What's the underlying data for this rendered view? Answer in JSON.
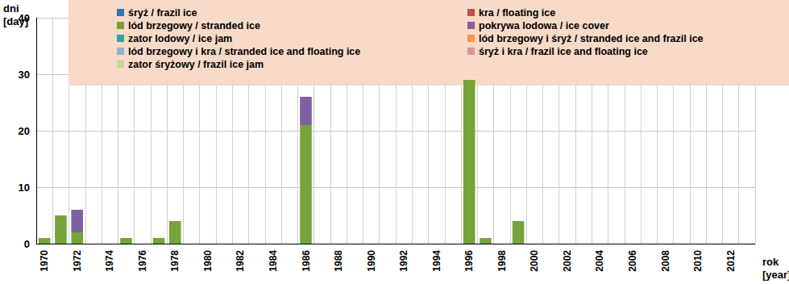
{
  "chart_data": {
    "type": "bar",
    "stacked": true,
    "grid": true,
    "legend": "top",
    "ylabel": "dni\n[day]",
    "xlabel": "rok\n[year]",
    "ylim": [
      0,
      40
    ],
    "yticks": [
      0,
      10,
      20,
      30,
      40
    ],
    "categories": [
      "1970",
      null,
      "1972",
      null,
      "1974",
      null,
      "1976",
      null,
      "1978",
      null,
      "1980",
      null,
      "1982",
      null,
      "1984",
      null,
      "1986",
      null,
      "1988",
      null,
      "1990",
      null,
      "1992",
      null,
      "1994",
      null,
      "1996",
      null,
      "1998",
      null,
      "2000",
      null,
      "2002",
      null,
      "2004",
      null,
      "2006",
      null,
      "2008",
      null,
      "2010",
      null,
      "2012",
      null
    ],
    "series": [
      {
        "name": "śryż / frazil ice",
        "color": "#2e75b6",
        "values": [
          0,
          0,
          0,
          0,
          0,
          0,
          0,
          0,
          0,
          0,
          0,
          0,
          0,
          0,
          0,
          0,
          0,
          0,
          0,
          0,
          0,
          0,
          0,
          0,
          0,
          0,
          0,
          0,
          0,
          0,
          0,
          0,
          0,
          0,
          0,
          0,
          0,
          0,
          0,
          0,
          0,
          0,
          0,
          0
        ]
      },
      {
        "name": "kra / floating ice",
        "color": "#c0504d",
        "values": [
          0,
          0,
          0,
          0,
          0,
          0,
          0,
          0,
          0,
          0,
          0,
          0,
          0,
          0,
          0,
          0,
          0,
          0,
          0,
          0,
          0,
          0,
          0,
          0,
          0,
          0,
          0,
          0,
          0,
          0,
          0,
          0,
          0,
          0,
          0,
          0,
          0,
          0,
          0,
          0,
          0,
          0,
          0,
          0
        ]
      },
      {
        "name": "lód brzegowy / stranded ice",
        "color": "#77a33a",
        "values": [
          1,
          5,
          2,
          0,
          0,
          1,
          0,
          1,
          4,
          0,
          0,
          0,
          0,
          0,
          0,
          0,
          21,
          0,
          0,
          0,
          0,
          0,
          0,
          0,
          0,
          0,
          29,
          1,
          0,
          4,
          0,
          0,
          0,
          0,
          0,
          0,
          0,
          0,
          0,
          0,
          0,
          0,
          0,
          0
        ]
      },
      {
        "name": "pokrywa lodowa / ice cover",
        "color": "#7f60a0",
        "values": [
          0,
          0,
          4,
          0,
          0,
          0,
          0,
          0,
          0,
          0,
          0,
          0,
          0,
          0,
          0,
          0,
          5,
          0,
          0,
          0,
          0,
          0,
          0,
          0,
          0,
          0,
          0,
          0,
          0,
          0,
          0,
          0,
          0,
          0,
          0,
          0,
          0,
          0,
          0,
          0,
          0,
          0,
          0,
          0
        ]
      },
      {
        "name": "zator lodowy / ice jam",
        "color": "#31a5a0",
        "values": [
          0,
          0,
          0,
          0,
          0,
          0,
          0,
          0,
          0,
          0,
          0,
          0,
          0,
          0,
          0,
          0,
          0,
          0,
          0,
          0,
          0,
          0,
          0,
          0,
          0,
          0,
          0,
          0,
          0,
          0,
          0,
          0,
          0,
          0,
          0,
          0,
          0,
          0,
          0,
          0,
          0,
          0,
          0,
          0
        ]
      },
      {
        "name": "lód brzegowy i śryż / stranded ice and frazil ice",
        "color": "#f79646",
        "values": [
          0,
          0,
          0,
          0,
          0,
          0,
          0,
          0,
          0,
          0,
          0,
          0,
          0,
          0,
          0,
          0,
          0,
          0,
          0,
          0,
          0,
          0,
          0,
          0,
          0,
          0,
          0,
          0,
          0,
          0,
          0,
          0,
          0,
          0,
          0,
          0,
          0,
          0,
          0,
          0,
          0,
          0,
          0,
          0
        ]
      },
      {
        "name": "lód brzegowy i kra / stranded ice and floating ice",
        "color": "#95b3d7",
        "values": [
          0,
          0,
          0,
          0,
          0,
          0,
          0,
          0,
          0,
          0,
          0,
          0,
          0,
          0,
          0,
          0,
          0,
          0,
          0,
          0,
          0,
          0,
          0,
          0,
          0,
          0,
          0,
          0,
          0,
          0,
          0,
          0,
          0,
          0,
          0,
          0,
          0,
          0,
          0,
          0,
          0,
          0,
          0,
          0
        ]
      },
      {
        "name": "śryż i kra / frazil ice and floating ice",
        "color": "#d99795",
        "values": [
          0,
          0,
          0,
          0,
          0,
          0,
          0,
          0,
          0,
          0,
          0,
          0,
          0,
          0,
          0,
          0,
          0,
          0,
          0,
          0,
          0,
          0,
          0,
          0,
          0,
          0,
          0,
          0,
          0,
          0,
          0,
          0,
          0,
          0,
          0,
          0,
          0,
          0,
          0,
          0,
          0,
          0,
          0,
          0
        ]
      },
      {
        "name": "zator śryżowy / frazil ice jam",
        "color": "#c3d69b",
        "values": [
          0,
          0,
          0,
          0,
          0,
          0,
          0,
          0,
          0,
          0,
          0,
          0,
          0,
          0,
          0,
          0,
          0,
          0,
          0,
          0,
          0,
          0,
          0,
          0,
          0,
          0,
          0,
          0,
          0,
          0,
          0,
          0,
          0,
          0,
          0,
          0,
          0,
          0,
          0,
          0,
          0,
          0,
          0,
          0
        ]
      }
    ]
  }
}
